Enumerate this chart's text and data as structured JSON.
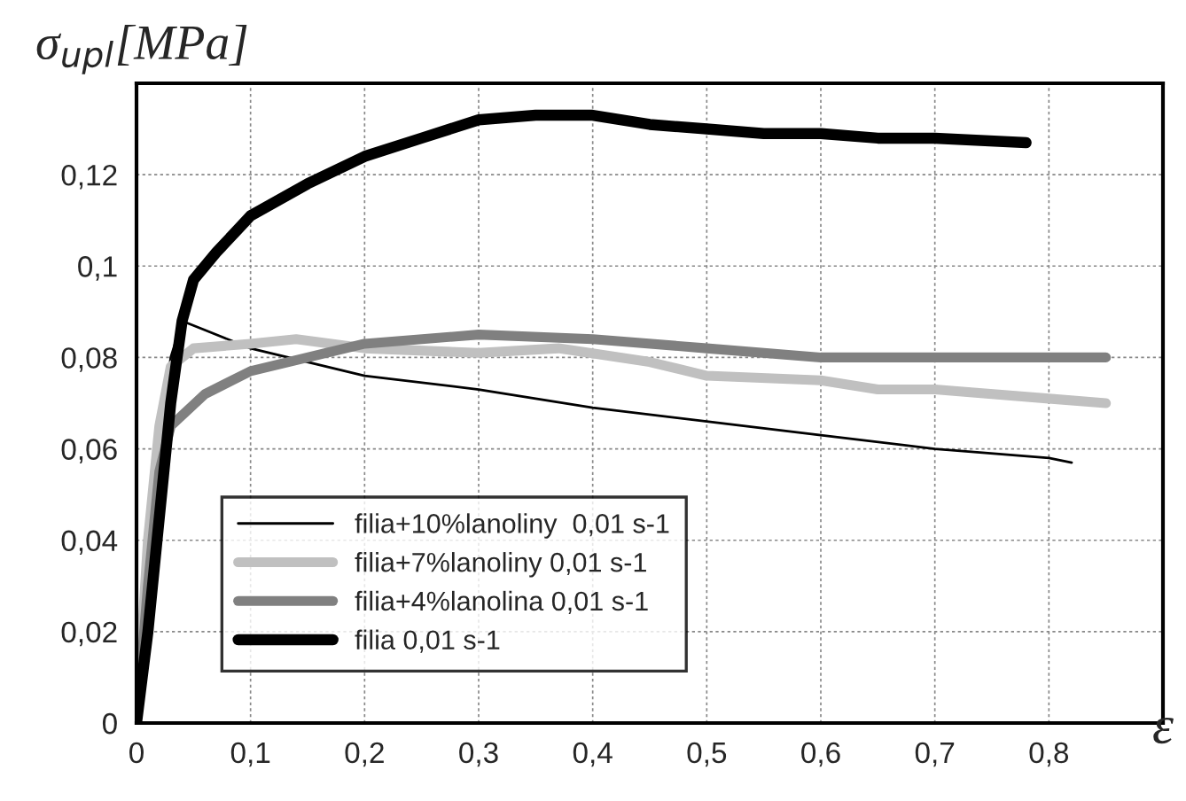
{
  "chart_data": {
    "type": "line",
    "ylabel": "σ$_{upl}$[MPa]",
    "xlabel": "ε",
    "xlim": [
      0,
      0.9
    ],
    "ylim": [
      0,
      0.14
    ],
    "xticks": [
      0,
      {
        "value": 0.1,
        "label": "0,1"
      },
      {
        "value": 0.2,
        "label": "0,2"
      },
      {
        "value": 0.3,
        "label": "0,3"
      },
      {
        "value": 0.4,
        "label": "0,4"
      },
      {
        "value": 0.5,
        "label": "0,5"
      },
      {
        "value": 0.6,
        "label": "0,6"
      },
      {
        "value": 0.7,
        "label": "0,7"
      },
      {
        "value": 0.8,
        "label": "0,8"
      }
    ],
    "yticks": [
      0,
      {
        "value": 0.02,
        "label": "0,02"
      },
      {
        "value": 0.04,
        "label": "0,04"
      },
      {
        "value": 0.06,
        "label": "0,06"
      },
      {
        "value": 0.08,
        "label": "0,08"
      },
      {
        "value": 0.1,
        "label": "0,1"
      },
      {
        "value": 0.12,
        "label": "0,12"
      }
    ],
    "grid": true,
    "legend": "bottom left",
    "marker": "none",
    "line_style": "solid",
    "series": [
      {
        "name": "filia+10%lanoliny  0,01 s-1",
        "color": "#000000",
        "x": [
          0,
          0.01,
          0.02,
          0.03,
          0.04,
          0.06,
          0.1,
          0.15,
          0.2,
          0.3,
          0.4,
          0.5,
          0.6,
          0.7,
          0.8,
          0.82
        ],
        "values": [
          0,
          0.03,
          0.06,
          0.08,
          0.088,
          0.086,
          0.082,
          0.079,
          0.076,
          0.073,
          0.069,
          0.066,
          0.063,
          0.06,
          0.058,
          0.057
        ]
      },
      {
        "name": "filia+7%lanoliny 0,01 s-1",
        "color": "#c0c0c0",
        "x": [
          0,
          0.01,
          0.02,
          0.03,
          0.05,
          0.1,
          0.14,
          0.2,
          0.3,
          0.37,
          0.45,
          0.5,
          0.6,
          0.65,
          0.7,
          0.8,
          0.85
        ],
        "values": [
          0,
          0.04,
          0.065,
          0.078,
          0.082,
          0.083,
          0.084,
          0.082,
          0.081,
          0.082,
          0.079,
          0.076,
          0.075,
          0.073,
          0.073,
          0.071,
          0.07
        ]
      },
      {
        "name": "filia+4%lanolina 0,01 s-1",
        "color": "#808080",
        "x": [
          0,
          0.01,
          0.02,
          0.03,
          0.06,
          0.1,
          0.15,
          0.2,
          0.3,
          0.4,
          0.5,
          0.6,
          0.7,
          0.85
        ],
        "values": [
          0,
          0.03,
          0.055,
          0.065,
          0.072,
          0.077,
          0.08,
          0.083,
          0.085,
          0.084,
          0.082,
          0.08,
          0.08,
          0.08
        ]
      },
      {
        "name": "filia 0,01 s-1",
        "color": "#000000",
        "x": [
          0,
          0.01,
          0.02,
          0.03,
          0.04,
          0.05,
          0.07,
          0.1,
          0.15,
          0.2,
          0.25,
          0.3,
          0.35,
          0.4,
          0.45,
          0.5,
          0.55,
          0.6,
          0.65,
          0.7,
          0.78
        ],
        "values": [
          0,
          0.02,
          0.045,
          0.07,
          0.088,
          0.097,
          0.103,
          0.111,
          0.118,
          0.124,
          0.128,
          0.132,
          0.133,
          0.133,
          0.131,
          0.13,
          0.129,
          0.129,
          0.128,
          0.128,
          0.127
        ]
      }
    ]
  }
}
